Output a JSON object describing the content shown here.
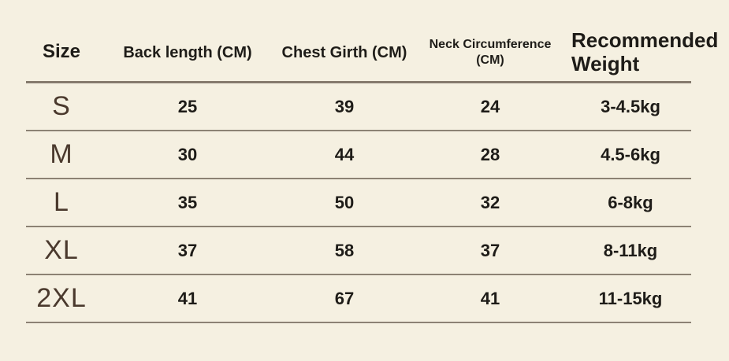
{
  "table": {
    "columns": [
      {
        "key": "size",
        "label": "Size"
      },
      {
        "key": "back_length",
        "label": "Back length (CM)"
      },
      {
        "key": "chest_girth",
        "label": "Chest Girth (CM)"
      },
      {
        "key": "neck_circumference",
        "label": "Neck Circumference (CM)"
      },
      {
        "key": "recommended_weight",
        "label": "Recommended Weight"
      }
    ],
    "rows": [
      {
        "size": "S",
        "back_length": "25",
        "chest_girth": "39",
        "neck_circumference": "24",
        "recommended_weight": "3-4.5kg"
      },
      {
        "size": "M",
        "back_length": "30",
        "chest_girth": "44",
        "neck_circumference": "28",
        "recommended_weight": "4.5-6kg"
      },
      {
        "size": "L",
        "back_length": "35",
        "chest_girth": "50",
        "neck_circumference": "32",
        "recommended_weight": "6-8kg"
      },
      {
        "size": "XL",
        "back_length": "37",
        "chest_girth": "58",
        "neck_circumference": "37",
        "recommended_weight": "8-11kg"
      },
      {
        "size": "2XL",
        "back_length": "41",
        "chest_girth": "67",
        "neck_circumference": "41",
        "recommended_weight": "11-15kg"
      }
    ]
  },
  "colors": {
    "background": "#f5f0e1",
    "divider": "#8c8274",
    "header_divider": "#857b6d",
    "header_text": "#1e1c18",
    "value_text": "#1e1c18",
    "size_letter_text": "#4a392d"
  }
}
